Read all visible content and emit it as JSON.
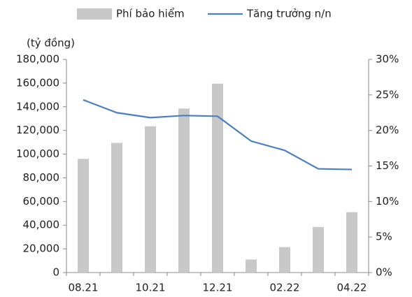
{
  "chart_data": {
    "type": "bar-line",
    "y_label": "(tỷ đồng)",
    "categories": [
      "08.21",
      null,
      "10.21",
      null,
      "12.21",
      null,
      "02.22",
      null,
      "04.22"
    ],
    "series": [
      {
        "name": "Phí bảo hiểm",
        "type": "bar",
        "color": "#c8c8c8",
        "values": [
          96000,
          109500,
          123500,
          138500,
          159500,
          11000,
          21500,
          38500,
          51000
        ]
      },
      {
        "name": "Tăng trưởng n/n",
        "type": "line",
        "axis": "y2",
        "color": "#4a7fc1",
        "values": [
          24.3,
          22.5,
          21.8,
          22.1,
          22.0,
          18.5,
          17.2,
          14.6,
          14.5
        ]
      }
    ],
    "ylim": [
      0,
      180000
    ],
    "yticks": [
      0,
      {
        "value": 20000,
        "label": "20,000"
      },
      {
        "value": 40000,
        "label": "40,000"
      },
      {
        "value": 60000,
        "label": "60,000"
      },
      {
        "value": 80000,
        "label": "80,000"
      },
      {
        "value": 100000,
        "label": "100,000"
      },
      {
        "value": 120000,
        "label": "120,000"
      },
      {
        "value": 140000,
        "label": "140,000"
      },
      {
        "value": 160000,
        "label": "160,000"
      },
      {
        "value": 180000,
        "label": "180,000"
      }
    ],
    "y2lim": [
      0,
      30
    ],
    "y2ticks": [
      {
        "value": 0,
        "label": "0%"
      },
      {
        "value": 5,
        "label": "5%"
      },
      {
        "value": 10,
        "label": "10%"
      },
      {
        "value": 15,
        "label": "15%"
      },
      {
        "value": 20,
        "label": "20%"
      },
      {
        "value": 25,
        "label": "25%"
      },
      {
        "value": 30,
        "label": "30%"
      }
    ],
    "legend": "top",
    "grid": false
  }
}
